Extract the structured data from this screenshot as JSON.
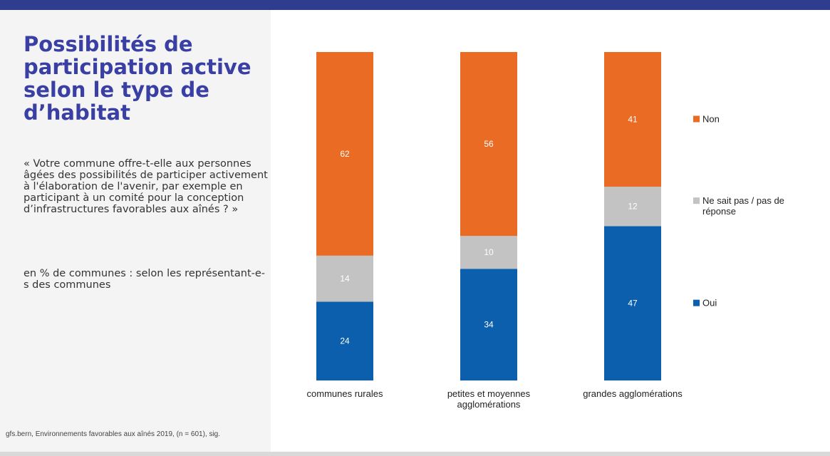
{
  "header": {
    "title": "Possibilités de participation active selon le type de d’habitat",
    "question": "« Votre commune offre-t-elle aux personnes âgées des possibilités de participer activement à l'élaboration de l'avenir, par exemple en participant à un comité pour la conception d’infrastructures favorables aux aînés ? »",
    "unit": "en % de communes : selon les représentant-e-s des communes"
  },
  "footer": {
    "source": "gfs.bern, Environnements favorables aux aînés 2019, (n = 601), sig."
  },
  "colors": {
    "accent_bar": "#2f3d8f",
    "title": "#3a3fa4"
  },
  "chart_data": {
    "type": "bar",
    "stacked": true,
    "categories": [
      [
        "communes rurales"
      ],
      [
        "petites et moyennes",
        "agglomérations"
      ],
      [
        "grandes agglomérations"
      ]
    ],
    "series": [
      {
        "name": "Oui",
        "color": "#0c5fad",
        "values": [
          24,
          34,
          47
        ]
      },
      {
        "name": "Ne sait pas / pas de réponse",
        "color": "#c3c3c3",
        "values": [
          14,
          10,
          12
        ]
      },
      {
        "name": "Non",
        "color": "#e96b24",
        "values": [
          62,
          56,
          41
        ]
      }
    ],
    "legend": [
      {
        "name": "Non",
        "lines": [
          "Non"
        ],
        "color": "#e96b24"
      },
      {
        "name": "Ne sait pas / pas de réponse",
        "lines": [
          "Ne sait pas / pas de",
          "réponse"
        ],
        "color": "#c3c3c3"
      },
      {
        "name": "Oui",
        "lines": [
          "Oui"
        ],
        "color": "#0c5fad"
      }
    ],
    "ylim": [
      0,
      100
    ],
    "grid": false,
    "legend_position": "right"
  }
}
